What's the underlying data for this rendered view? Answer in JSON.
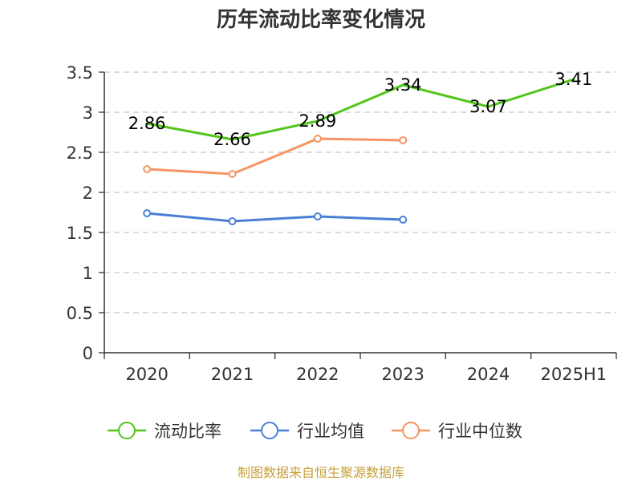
{
  "chart_data": {
    "type": "line",
    "title": "历年流动比率变化情况",
    "xlabel": "",
    "ylabel": "",
    "categories": [
      "2020",
      "2021",
      "2022",
      "2023",
      "2024",
      "2025H1"
    ],
    "ylim": [
      0,
      3.5
    ],
    "yticks": [
      {
        "value": 0,
        "label": "0"
      },
      {
        "value": 0.5,
        "label": "0.5"
      },
      {
        "value": 1,
        "label": "1"
      },
      {
        "value": 1.5,
        "label": "1.5"
      },
      {
        "value": 2,
        "label": "2"
      },
      {
        "value": 2.5,
        "label": "2.5"
      },
      {
        "value": 3,
        "label": "3"
      },
      {
        "value": 3.5,
        "label": "3.5"
      }
    ],
    "grid": true,
    "legend_position": "bottom",
    "series": [
      {
        "name": "流动比率",
        "color": "#52c41a",
        "values": [
          2.86,
          2.66,
          2.89,
          3.34,
          3.07,
          3.41
        ],
        "labels": [
          "2.86",
          "2.66",
          "2.89",
          "3.34",
          "3.07",
          "3.41"
        ],
        "show_markers": false
      },
      {
        "name": "行业均值",
        "color": "#4a7fd8",
        "values": [
          1.74,
          1.64,
          1.7,
          1.66,
          null,
          null
        ],
        "labels": [],
        "show_markers": true
      },
      {
        "name": "行业中位数",
        "color": "#f59563",
        "values": [
          2.29,
          2.23,
          2.67,
          2.65,
          null,
          null
        ],
        "labels": [],
        "show_markers": true
      }
    ]
  },
  "source": {
    "text": "制图数据来自恒生聚源数据库",
    "color": "#c7a13a"
  }
}
